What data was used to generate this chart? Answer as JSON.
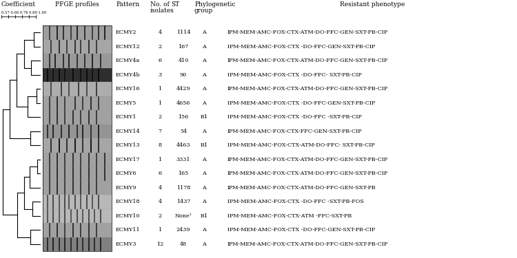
{
  "title_col1": "Coefficient",
  "title_col2": "PFGE profiles",
  "title_col3": "Pattern",
  "title_col4": "No. of\nisolates",
  "title_col5": "ST",
  "title_col6": "Phylogenetic\ngroup",
  "title_col7": "Resistant phenotype",
  "coeff_scale": "0.57 0.68 0.78 0.89 1.00",
  "rows": [
    {
      "pattern": "ECMY2",
      "n": "4",
      "st": "1114",
      "pg": "A",
      "rp": "IPM-MEM-AMC-FOX-CTX-ATM-DO-FFC-GEN-SXT-PB-CIP"
    },
    {
      "pattern": "ECMY12",
      "n": "2",
      "st": "167",
      "pg": "A",
      "rp": "IPM-MEM-AMC-FOX-CTX -DO-FFC-GEN-SXT-PB-CIP"
    },
    {
      "pattern": "ECMY4a",
      "n": "6",
      "st": "410",
      "pg": "A",
      "rp": "IPM-MEM-AMC-FOX-CTX-ATM-DO-FFC-GEN-SXT-PB-CIP"
    },
    {
      "pattern": "ECMY4b",
      "n": "3",
      "st": "90",
      "pg": "A",
      "rp": "IPM-MEM-AMC-FOX-CTX -DO-FFC- SXT-PB-CIP"
    },
    {
      "pattern": "ECMY16",
      "n": "1",
      "st": "4429",
      "pg": "A",
      "rp": "IPM-MEM-AMC-FOX-CTX-ATM-DO-FFC-GEN-SXT-PB-CIP"
    },
    {
      "pattern": "ECMY5",
      "n": "1",
      "st": "4656",
      "pg": "A",
      "rp": "IPM-MEM-AMC-FOX-CTX -DO-FFC-GEN-SXT-PB-CIP"
    },
    {
      "pattern": "ECMY1",
      "n": "2",
      "st": "156",
      "pg": "B1",
      "rp": "IPM-MEM-AMC-FOX-CTX -DO-FFC -SXT-PB-CIP"
    },
    {
      "pattern": "ECMY14",
      "n": "7",
      "st": "54",
      "pg": "A",
      "rp": "IPM-MEM-AMC-FOX-CTX-FFC-GEN-SXT-PB-CIP"
    },
    {
      "pattern": "ECMY13",
      "n": "8",
      "st": "4463",
      "pg": "B1",
      "rp": "IPM-MEM-AMC-FOX-CTX-ATM-DO-FFC- SXT-PB-CIP"
    },
    {
      "pattern": "ECMY17",
      "n": "1",
      "st": "3331",
      "pg": "A",
      "rp": "IPM-MEM-AMC-FOX-CTX-ATM-DO-FFC-GEN-SXT-PB-CIP"
    },
    {
      "pattern": "ECMY6",
      "n": "6",
      "st": "165",
      "pg": "A",
      "rp": "IPM-MEM-AMC-FOX-CTX-ATM-DO-FFC-GEN-SXT-PB-CIP"
    },
    {
      "pattern": "ECMY9",
      "n": "4",
      "st": "1178",
      "pg": "A",
      "rp": "IPM-MEM-AMC-FOX-CTX-ATM-DO-FFC-GEN-SXT-PB"
    },
    {
      "pattern": "ECMY18",
      "n": "4",
      "st": "1437",
      "pg": "A",
      "rp": "IPM-MEM-AMC-FOX-CTX -DO-FFC -SXT-PB-FOS"
    },
    {
      "pattern": "ECMY10",
      "n": "2",
      "st": "None¹",
      "pg": "B1",
      "rp": "IPM-MEM-AMC-FOX-CTX-ATM -FFC-SXT-PB"
    },
    {
      "pattern": "ECMY11",
      "n": "1",
      "st": "2439",
      "pg": "A",
      "rp": "IPM-MEM-AMC-FOX-CTX -DO-FFC-GEN-SXT-PB-CIP"
    },
    {
      "pattern": "ECMY3",
      "n": "12",
      "st": "48",
      "pg": "A",
      "rp": "IPM-MEM-AMC-FOX-CTX-ATM-DO-FFC-GEN-SXT-PB-CIP"
    }
  ],
  "bg_color": "#ffffff",
  "text_color": "#000000",
  "font_size": 5.8,
  "header_font_size": 6.5
}
